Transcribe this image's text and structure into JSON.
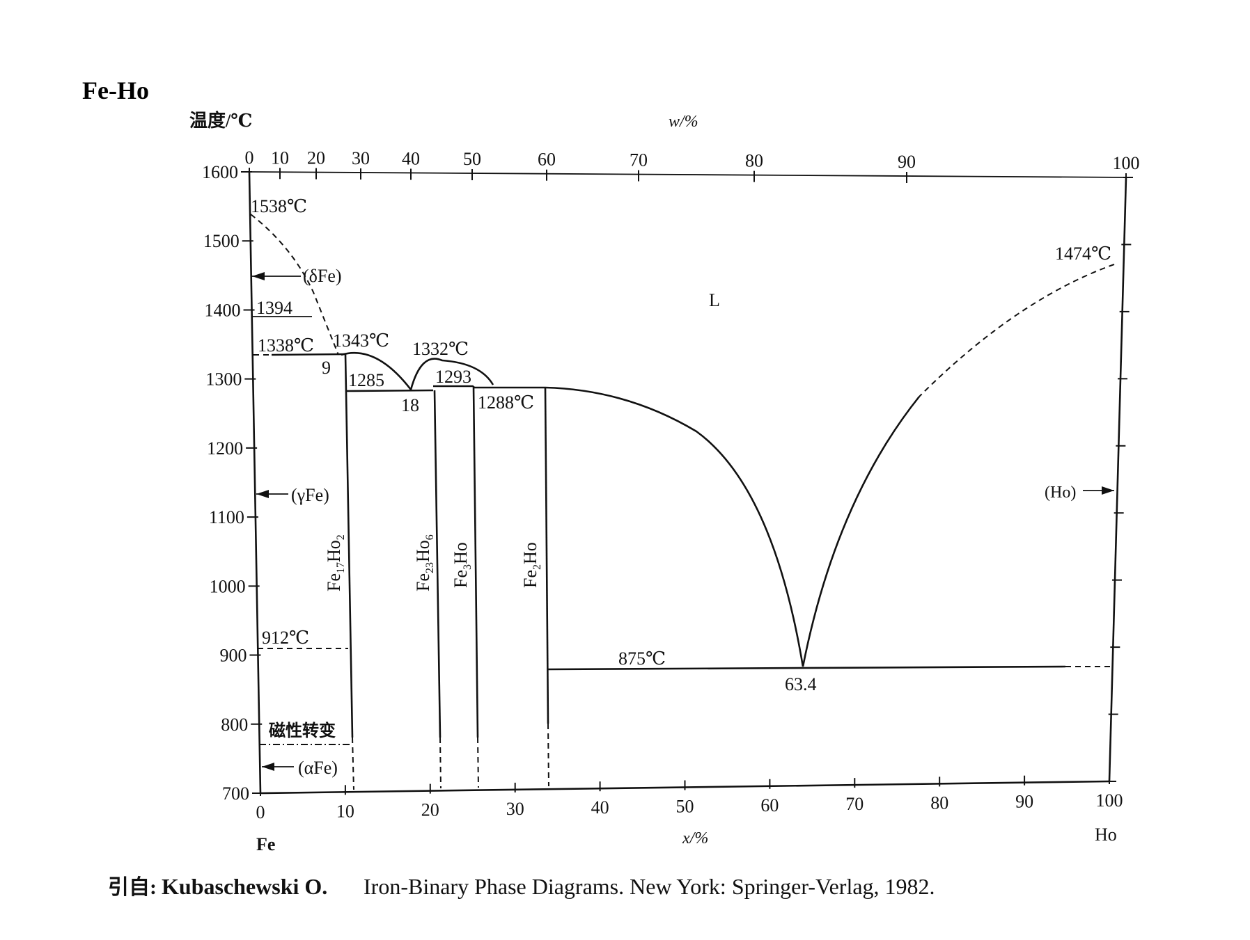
{
  "title": "Fe-Ho",
  "y_axis_label": "温度/℃",
  "top_axis_label": "w/%",
  "bottom_axis_label": "x/%",
  "left_element": "Fe",
  "right_element": "Ho",
  "y_ticks": [
    "1600",
    "1500",
    "1400",
    "1300",
    "1200",
    "1100",
    "1000",
    "900",
    "800",
    "700"
  ],
  "top_ticks": [
    "0",
    "10",
    "20",
    "30",
    "40",
    "50",
    "60",
    "70",
    "80",
    "90",
    "100"
  ],
  "bottom_ticks": [
    "0",
    "10",
    "20",
    "30",
    "40",
    "50",
    "60",
    "70",
    "80",
    "90",
    "100"
  ],
  "labels": {
    "melt_fe": "1538℃",
    "delta_fe": "(δFe)",
    "t1394": "1394",
    "t1338": "1338℃",
    "c9": "9",
    "t1343": "1343℃",
    "t1285": "1285",
    "c18": "18",
    "t1332": "1332℃",
    "t1293": "1293",
    "t1288": "1288℃",
    "liquid": "L",
    "melt_ho": "1474℃",
    "gamma_fe": "(γFe)",
    "ho_phase": "(Ho)",
    "t912": "912℃",
    "t875": "875℃",
    "c634": "63.4",
    "magnetic": "磁性转变",
    "alpha_fe": "(αFe)"
  },
  "phases": [
    "Fe17Ho2",
    "Fe23Ho6",
    "Fe3Ho",
    "Fe2Ho"
  ],
  "source": {
    "prefix": "引自:",
    "author": "Kubaschewski O.",
    "rest": "Iron-Binary Phase Diagrams. New York: Springer-Verlag, 1982."
  }
}
